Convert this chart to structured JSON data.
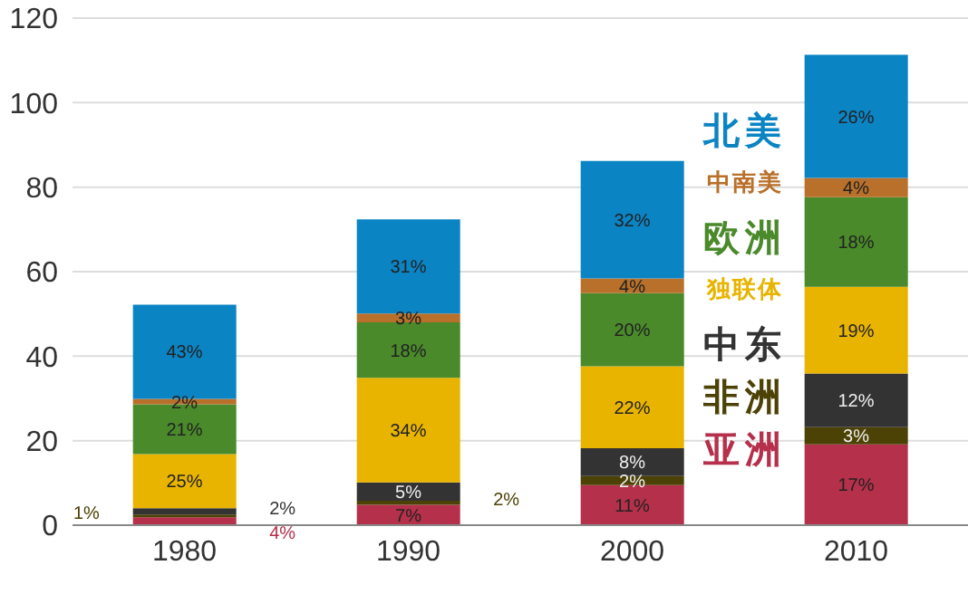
{
  "chart_data": {
    "type": "bar",
    "stacked": true,
    "categories": [
      "1980",
      "1990",
      "2000",
      "2010"
    ],
    "ylim": [
      0,
      120
    ],
    "yticks": [
      0,
      20,
      40,
      60,
      80,
      100,
      120
    ],
    "grid": "y",
    "legend": "right",
    "series": [
      {
        "name": "亚洲",
        "color": "#b5304a",
        "values": [
          1.9,
          4.8,
          9.5,
          19.1
        ]
      },
      {
        "name": "非洲",
        "color": "#4d4205",
        "values": [
          0.6,
          1.0,
          2.1,
          4.1
        ]
      },
      {
        "name": "中东",
        "color": "#333333",
        "values": [
          1.5,
          4.3,
          6.6,
          12.7
        ]
      },
      {
        "name": "独联体",
        "color": "#e8b400",
        "values": [
          12.8,
          24.8,
          19.4,
          20.5
        ]
      },
      {
        "name": "欧洲",
        "color": "#4a8a2a",
        "values": [
          11.8,
          13.1,
          17.3,
          21.2
        ]
      },
      {
        "name": "中南美",
        "color": "#b8702a",
        "values": [
          1.3,
          2.1,
          3.5,
          4.6
        ]
      },
      {
        "name": "北美",
        "color": "#0b84c4",
        "values": [
          22.3,
          22.3,
          27.8,
          29.1
        ]
      }
    ],
    "annotations": [
      "4%",
      "1%",
      "2%",
      "25%",
      "21%",
      "2%",
      "43%",
      "7%",
      "2%",
      "5%",
      "34%",
      "18%",
      "3%",
      "31%",
      "11%",
      "2%",
      "8%",
      "22%",
      "20%",
      "4%",
      "32%",
      "17%",
      "3%",
      "12%",
      "19%",
      "18%",
      "4%",
      "26%"
    ]
  }
}
